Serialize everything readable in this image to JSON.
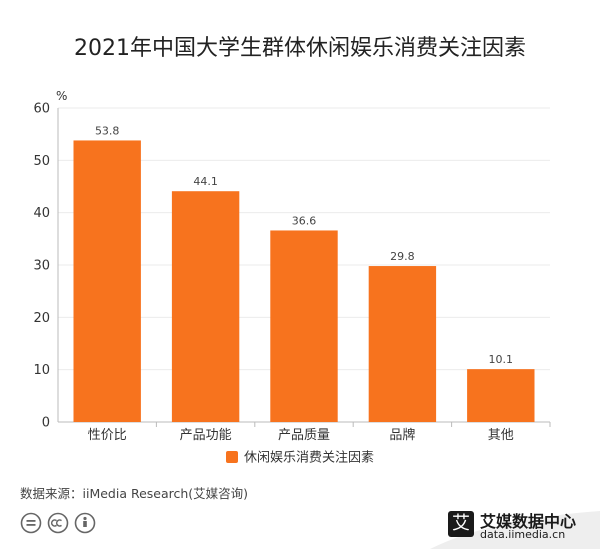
{
  "title": "2021年中国大学生群体休闲娱乐消费关注因素",
  "source": "数据来源：iiMedia Research(艾媒咨询)",
  "brand": {
    "name": "艾媒数据中心",
    "url": "data.iimedia.cn",
    "logo_char": "艾"
  },
  "colors": {
    "bar": "#F7731E",
    "grid": "#EBEBEB",
    "axis": "#BBBBBB"
  },
  "chart_data": {
    "type": "bar",
    "title": "2021年中国大学生群体休闲娱乐消费关注因素",
    "ylabel": "%",
    "xlabel": "",
    "categories": [
      "性价比",
      "产品功能",
      "产品质量",
      "品牌",
      "其他"
    ],
    "series": [
      {
        "name": "休闲娱乐消费关注因素",
        "values": [
          53.8,
          44.1,
          36.6,
          29.8,
          10.1
        ]
      }
    ],
    "ylim": [
      0,
      60
    ],
    "yticks": [
      0,
      10,
      20,
      30,
      40,
      50,
      60
    ],
    "grid": true,
    "legend": "bottom-center"
  }
}
